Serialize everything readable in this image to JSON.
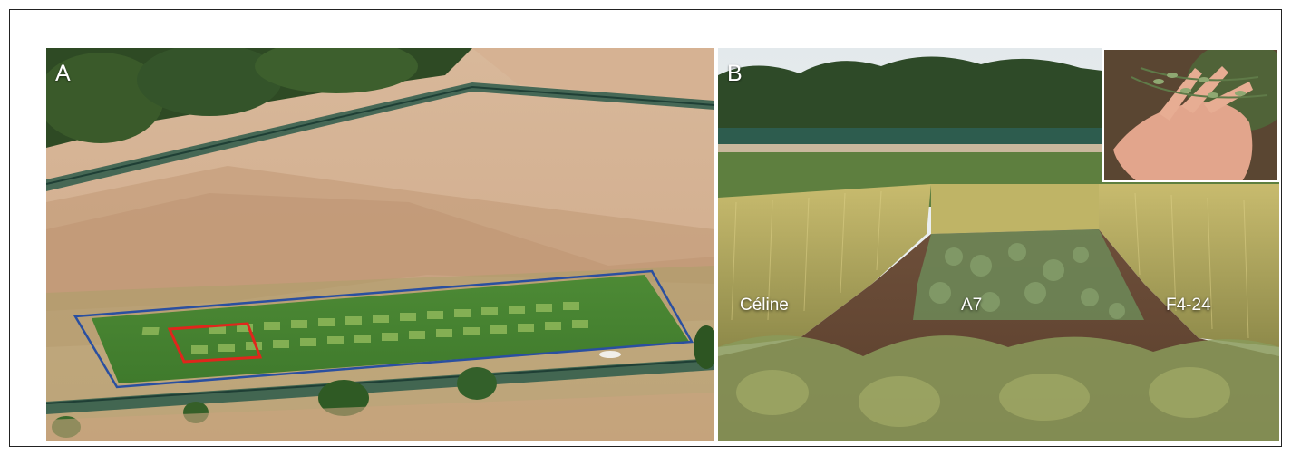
{
  "figure": {
    "panels": [
      {
        "letter": "A",
        "scene": "Aerial view of fenced field trial site with green crop plots; blue outline marks trial area, red outline marks sub-block",
        "overlays": {
          "trial_area_color": "#2a4fa0",
          "sub_block_color": "#e0261c"
        }
      },
      {
        "letter": "B",
        "scene": "Ground view of plots between tall cereal stands, with inset photo of seed pods in a hand",
        "labels": {
          "left": "Céline",
          "center": "A7",
          "right": "F4-24"
        }
      }
    ]
  }
}
